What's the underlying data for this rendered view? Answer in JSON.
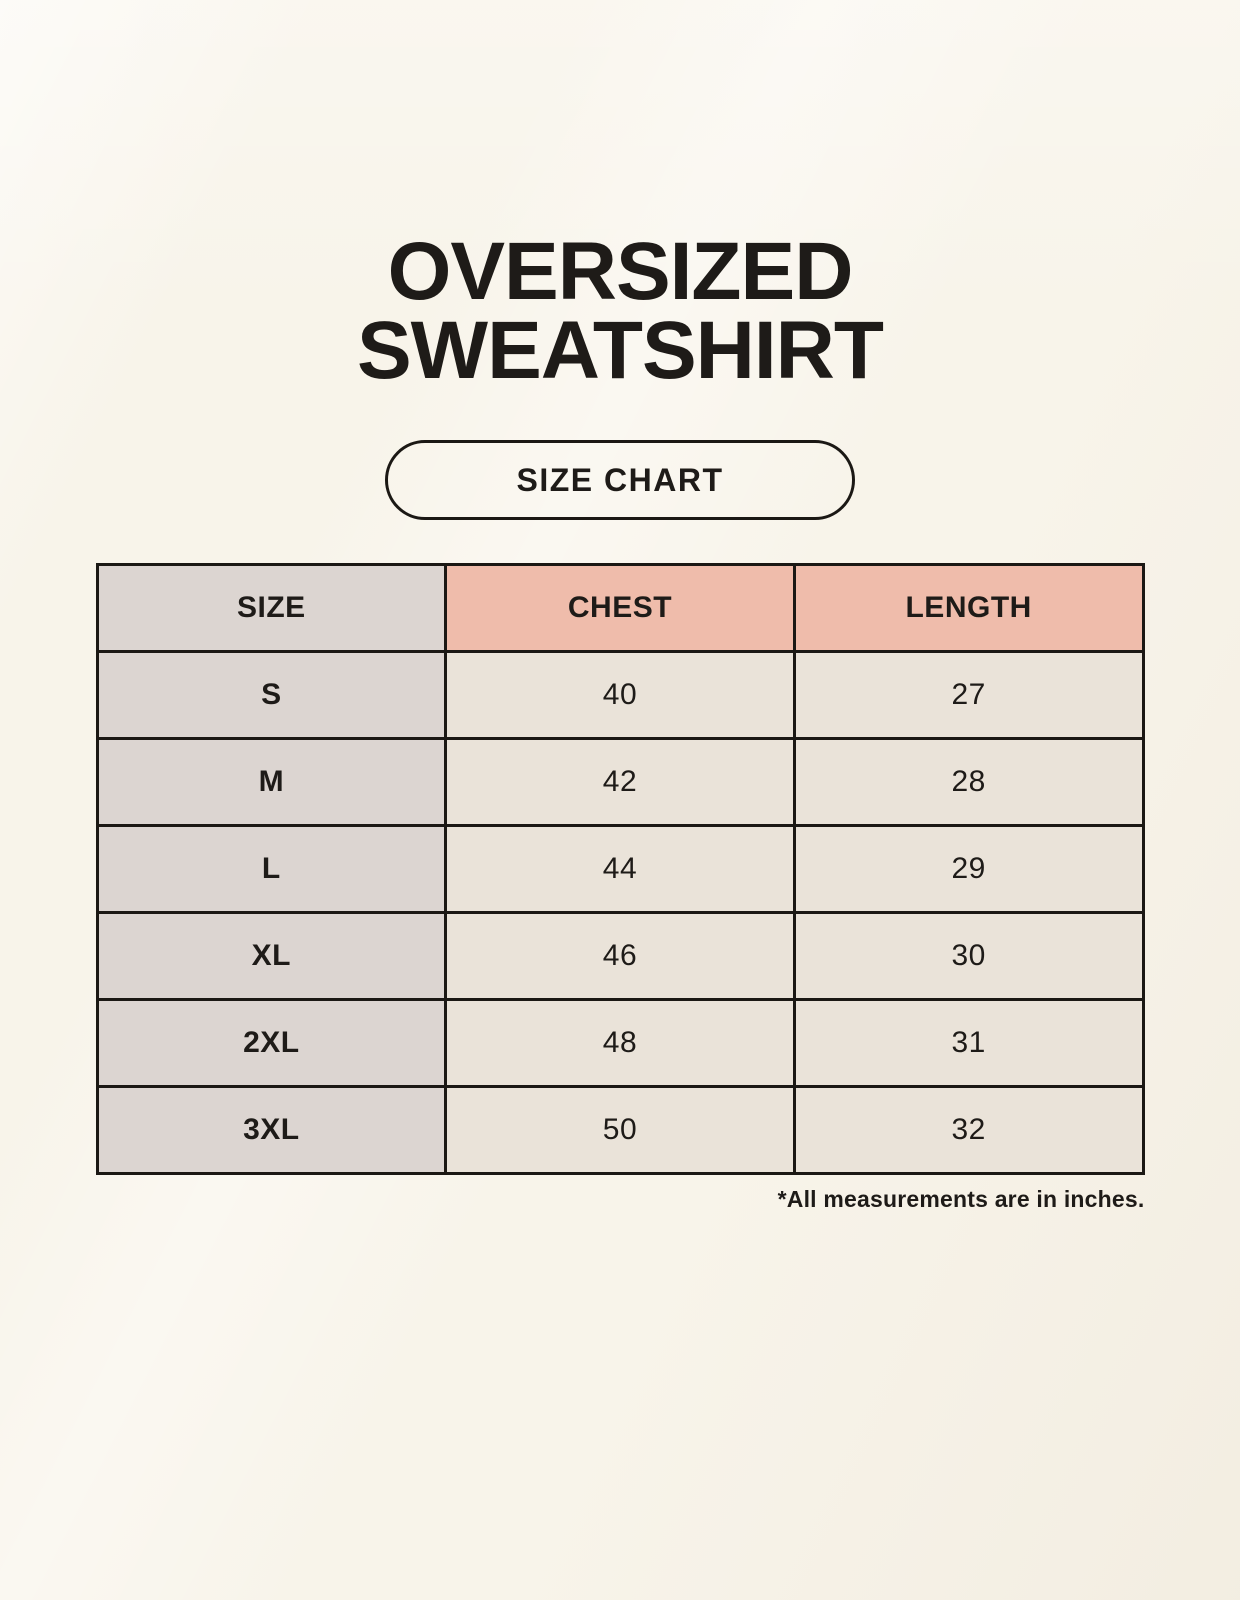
{
  "page": {
    "title_line1": "OVERSIZED",
    "title_line2": "SWEATSHIRT",
    "badge_label": "SIZE CHART",
    "footnote": "*All measurements are in inches."
  },
  "colors": {
    "page_bg": "#f8f4ea",
    "table_border": "#1b1814",
    "label_bg": "#dcd5d1",
    "accent_bg": "#efbcab",
    "value_bg": "#eae3d9",
    "text_color": "#1e1b18"
  },
  "chart_data": {
    "type": "table",
    "title": "OVERSIZED SWEATSHIRT",
    "columns": [
      "SIZE",
      "CHEST",
      "LENGTH"
    ],
    "rows": [
      [
        "S",
        "40",
        "27"
      ],
      [
        "M",
        "42",
        "28"
      ],
      [
        "L",
        "44",
        "29"
      ],
      [
        "XL",
        "46",
        "30"
      ],
      [
        "2XL",
        "48",
        "31"
      ],
      [
        "3XL",
        "50",
        "32"
      ]
    ],
    "units_note": "*All measurements are in inches.",
    "layout": "3-column size chart, label column gray, measurement headers salmon"
  }
}
